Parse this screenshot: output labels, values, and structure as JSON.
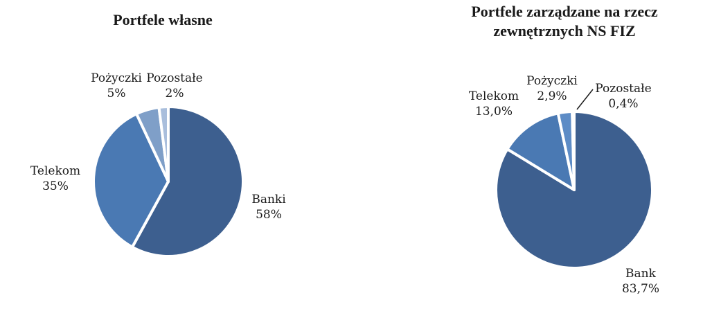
{
  "chart_data": [
    {
      "type": "pie",
      "title": "Portfele własne",
      "slices": [
        {
          "label": "Banki",
          "value": 58,
          "value_label": "58%",
          "color": "#3d5f8f"
        },
        {
          "label": "Telekom",
          "value": 35,
          "value_label": "35%",
          "color": "#4a79b3"
        },
        {
          "label": "Pożyczki",
          "value": 5,
          "value_label": "5%",
          "color": "#7f9fc8"
        },
        {
          "label": "Pozostałe",
          "value": 2,
          "value_label": "2%",
          "color": "#a9bedc"
        }
      ]
    },
    {
      "type": "pie",
      "title": "Portfele zarządzane na rzecz zewnętrznych NS FIZ",
      "slices": [
        {
          "label": "Bank",
          "value": 83.7,
          "value_label": "83,7%",
          "color": "#3d5f8f"
        },
        {
          "label": "Telekom",
          "value": 13.0,
          "value_label": "13,0%",
          "color": "#4a79b3"
        },
        {
          "label": "Pożyczki",
          "value": 2.9,
          "value_label": "2,9%",
          "color": "#5d8cc6"
        },
        {
          "label": "Pozostałe",
          "value": 0.4,
          "value_label": "0,4%",
          "color": "#8fb0d9"
        }
      ]
    }
  ]
}
